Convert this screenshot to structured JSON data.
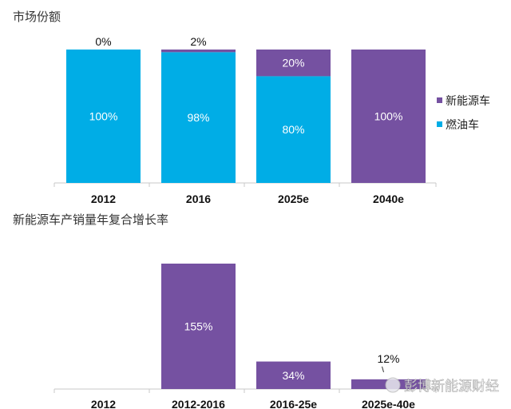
{
  "colors": {
    "ice": "#00ade6",
    "nev": "#7551a1",
    "axis": "#c8c8c8"
  },
  "watermark": "彭博新能源财经",
  "chart_data": [
    {
      "type": "bar",
      "stacked": true,
      "title": "市场份额",
      "categories": [
        "2012",
        "2016",
        "2025e",
        "2040e"
      ],
      "ylim": [
        0,
        100
      ],
      "legend_position": "right",
      "series": [
        {
          "name": "燃油车",
          "key": "ice",
          "values": [
            100,
            98,
            80,
            0
          ],
          "labels": [
            "100%",
            "98%",
            "80%",
            ""
          ]
        },
        {
          "name": "新能源车",
          "key": "nev",
          "values": [
            0,
            2,
            20,
            100
          ],
          "labels": [
            "0%",
            "2%",
            "20%",
            "100%"
          ]
        }
      ],
      "legend": [
        "新能源车",
        "燃油车"
      ]
    },
    {
      "type": "bar",
      "title": "新能源车产销量年复合增长率",
      "categories": [
        "2012",
        "2012-2016",
        "2016-25e",
        "2025e-40e"
      ],
      "values": [
        0,
        155,
        34,
        12
      ],
      "labels": [
        "",
        "155%",
        "34%",
        "12%"
      ],
      "ylim": [
        0,
        155
      ]
    }
  ]
}
